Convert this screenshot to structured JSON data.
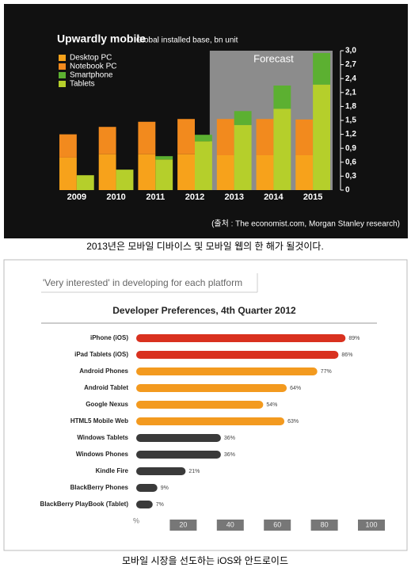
{
  "chart_data": [
    {
      "type": "bar",
      "title": "Upwardly mobile",
      "subtitle": "Global installed base, bn unit",
      "source": "(출처 : The economist.com, Morgan Stanley research)",
      "categories": [
        "2009",
        "2010",
        "2011",
        "2012",
        "2013",
        "2014",
        "2015"
      ],
      "series": [
        {
          "name": "Desktop PC",
          "color": "#f7a21b",
          "values": [
            0.7,
            0.77,
            0.77,
            0.77,
            0.75,
            0.75,
            0.75
          ]
        },
        {
          "name": "Notebook PC",
          "color": "#f28a1e",
          "values": [
            0.5,
            0.59,
            0.7,
            0.76,
            0.78,
            0.78,
            0.77
          ]
        },
        {
          "name": "Smartphone",
          "color": "#5cb031",
          "values": [
            0,
            0,
            0.07,
            0.14,
            0.3,
            0.5,
            0.68
          ]
        },
        {
          "name": "Tablets",
          "color": "#b5cf2b",
          "values": [
            0.32,
            0.44,
            0.66,
            1.05,
            1.4,
            1.75,
            2.27
          ]
        }
      ],
      "ylim": [
        0,
        3
      ],
      "yticks": [
        0,
        {
          "value": 0.3,
          "label": "0,3"
        },
        {
          "value": 0.6,
          "label": "0,6"
        },
        {
          "value": 0.9,
          "label": "0,9"
        },
        {
          "value": 1.2,
          "label": "1,2"
        },
        {
          "value": 1.5,
          "label": "1,5"
        },
        {
          "value": 1.8,
          "label": "1,8"
        },
        {
          "value": 2.1,
          "label": "2,1"
        },
        {
          "value": 2.4,
          "label": "2,4"
        },
        {
          "value": 2.7,
          "label": "2,7"
        },
        {
          "value": 3,
          "label": "3,0"
        }
      ],
      "annotation": {
        "text": "Forecast",
        "from": "2013",
        "to": "2015"
      },
      "legend": "upper left"
    },
    {
      "type": "hbar",
      "header": "'Very interested' in developing for each platform",
      "title": "Developer Preferences, 4th Quarter 2012",
      "categories": [
        "iPhone (iOS)",
        "iPad Tablets (iOS)",
        "Android Phones",
        "Android Tablet",
        "Google Nexus",
        "HTML5 Mobile Web",
        "Windows Tablets",
        "Windows Phones",
        "Kindle Fire",
        "BlackBerry Phones",
        "BlackBerry PlayBook (Tablet)"
      ],
      "values": [
        89,
        86,
        77,
        64,
        54,
        63,
        36,
        36,
        21,
        9,
        7
      ],
      "value_labels": [
        "89%",
        "86%",
        "77%",
        "64%",
        "54%",
        "63%",
        "36%",
        "36%",
        "21%",
        "9%",
        "7%"
      ],
      "colors": [
        "#d9311f",
        "#d9311f",
        "#f39a1f",
        "#f39a1f",
        "#f39a1f",
        "#f39a1f",
        "#3a3a3a",
        "#3a3a3a",
        "#3a3a3a",
        "#3a3a3a",
        "#3a3a3a"
      ],
      "x_label": "%",
      "xlim": [
        0,
        100
      ],
      "xticks": [
        20,
        40,
        60,
        80,
        100
      ]
    }
  ],
  "captions": [
    "2013년은 모바일 디바이스 및 모바일 웹의 한 해가 될것이다.",
    "모바일 시장을 선도하는 iOS와 안드로이드"
  ]
}
